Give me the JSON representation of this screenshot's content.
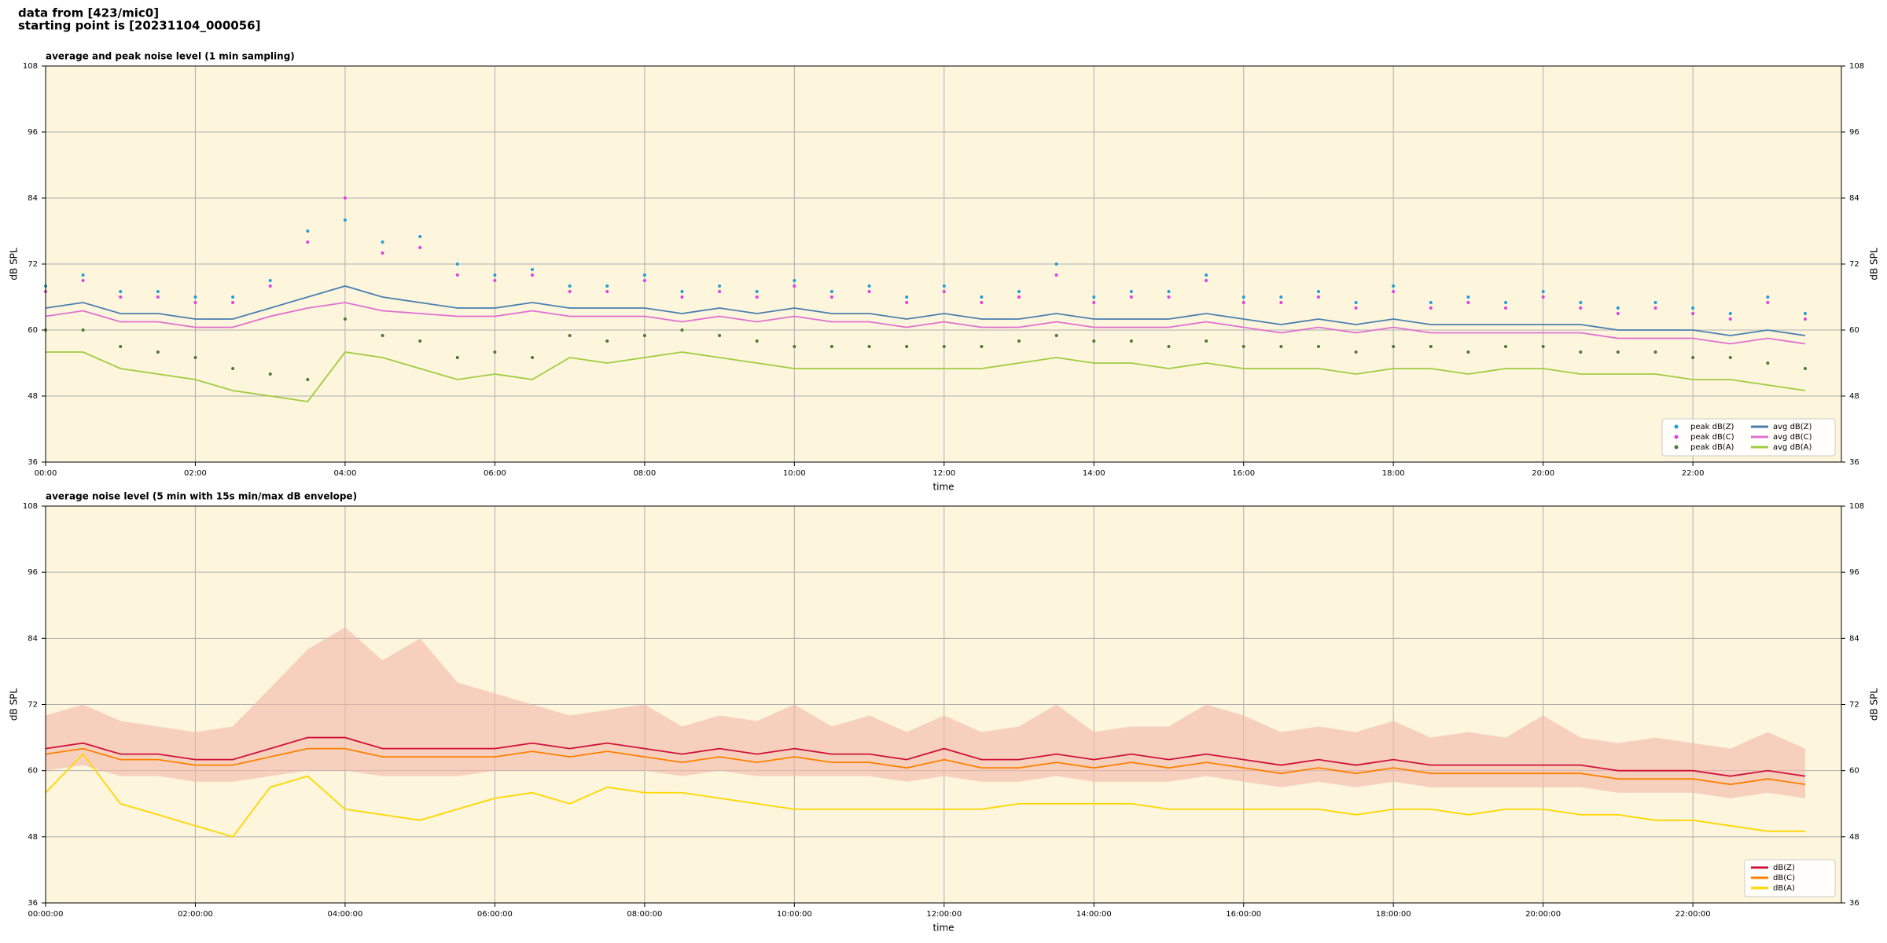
{
  "header": {
    "lines": [
      "data from [423/mic0]",
      "starting point is [20231104_000056]"
    ]
  },
  "chart_data": [
    {
      "type": "line",
      "title": "average and peak noise level (1 min sampling)",
      "xlabel": "time",
      "ylabel": "dB SPL",
      "x": [
        "00:00",
        "00:30",
        "01:00",
        "01:30",
        "02:00",
        "02:30",
        "03:00",
        "03:30",
        "04:00",
        "04:30",
        "05:00",
        "05:30",
        "06:00",
        "06:30",
        "07:00",
        "07:30",
        "08:00",
        "08:30",
        "09:00",
        "09:30",
        "10:00",
        "10:30",
        "11:00",
        "11:30",
        "12:00",
        "12:30",
        "13:00",
        "13:30",
        "14:00",
        "14:30",
        "15:00",
        "15:30",
        "16:00",
        "16:30",
        "17:00",
        "17:30",
        "18:00",
        "18:30",
        "19:00",
        "19:30",
        "20:00",
        "20:30",
        "21:00",
        "21:30",
        "22:00",
        "22:30",
        "23:00",
        "23:30"
      ],
      "xlim": [
        "00:00",
        "23:59"
      ],
      "xticks": [
        "00:00",
        "02:00",
        "04:00",
        "06:00",
        "08:00",
        "10:00",
        "12:00",
        "14:00",
        "16:00",
        "18:00",
        "20:00",
        "22:00"
      ],
      "ylim": [
        36,
        108
      ],
      "yticks": [
        36,
        48,
        60,
        72,
        84,
        96,
        108
      ],
      "grid": true,
      "legend": "lower right",
      "legend_columns": 2,
      "series": [
        {
          "name": "peak dB(Z)",
          "mode": "markers",
          "color": "#1f9fd8",
          "values": [
            68,
            70,
            67,
            67,
            66,
            66,
            69,
            78,
            80,
            76,
            77,
            72,
            70,
            71,
            68,
            68,
            70,
            67,
            68,
            67,
            69,
            67,
            68,
            66,
            68,
            66,
            67,
            72,
            66,
            67,
            67,
            70,
            66,
            66,
            67,
            65,
            68,
            65,
            66,
            65,
            67,
            65,
            64,
            65,
            64,
            63,
            66,
            63
          ]
        },
        {
          "name": "peak dB(C)",
          "mode": "markers",
          "color": "#e040e0",
          "values": [
            67,
            69,
            66,
            66,
            65,
            65,
            68,
            76,
            84,
            74,
            75,
            70,
            69,
            70,
            67,
            67,
            69,
            66,
            67,
            66,
            68,
            66,
            67,
            65,
            67,
            65,
            66,
            70,
            65,
            66,
            66,
            69,
            65,
            65,
            66,
            64,
            67,
            64,
            65,
            64,
            66,
            64,
            63,
            64,
            63,
            62,
            65,
            62
          ]
        },
        {
          "name": "peak dB(A)",
          "mode": "markers",
          "color": "#4a7a30",
          "values": [
            60,
            60,
            57,
            56,
            55,
            53,
            52,
            51,
            62,
            59,
            58,
            55,
            56,
            55,
            59,
            58,
            59,
            60,
            59,
            58,
            57,
            57,
            57,
            57,
            57,
            57,
            58,
            59,
            58,
            58,
            57,
            58,
            57,
            57,
            57,
            56,
            57,
            57,
            56,
            57,
            57,
            56,
            56,
            56,
            55,
            55,
            54,
            53
          ]
        },
        {
          "name": "avg dB(Z)",
          "mode": "lines",
          "color": "#4a7fb0",
          "values": [
            64,
            65,
            63,
            63,
            62,
            62,
            64,
            66,
            68,
            66,
            65,
            64,
            64,
            65,
            64,
            64,
            64,
            63,
            64,
            63,
            64,
            63,
            63,
            62,
            63,
            62,
            62,
            63,
            62,
            62,
            62,
            63,
            62,
            61,
            62,
            61,
            62,
            61,
            61,
            61,
            61,
            61,
            60,
            60,
            60,
            59,
            60,
            59
          ]
        },
        {
          "name": "avg dB(C)",
          "mode": "lines",
          "color": "#e070d0",
          "values": [
            62.5,
            63.5,
            61.5,
            61.5,
            60.5,
            60.5,
            62.5,
            64,
            65,
            63.5,
            63,
            62.5,
            62.5,
            63.5,
            62.5,
            62.5,
            62.5,
            61.5,
            62.5,
            61.5,
            62.5,
            61.5,
            61.5,
            60.5,
            61.5,
            60.5,
            60.5,
            61.5,
            60.5,
            60.5,
            60.5,
            61.5,
            60.5,
            59.5,
            60.5,
            59.5,
            60.5,
            59.5,
            59.5,
            59.5,
            59.5,
            59.5,
            58.5,
            58.5,
            58.5,
            57.5,
            58.5,
            57.5
          ]
        },
        {
          "name": "avg dB(A)",
          "mode": "lines",
          "color": "#a0cc40",
          "values": [
            56,
            56,
            53,
            52,
            51,
            49,
            48,
            47,
            56,
            55,
            53,
            51,
            52,
            51,
            55,
            54,
            55,
            56,
            55,
            54,
            53,
            53,
            53,
            53,
            53,
            53,
            54,
            55,
            54,
            54,
            53,
            54,
            53,
            53,
            53,
            52,
            53,
            53,
            52,
            53,
            53,
            52,
            52,
            52,
            51,
            51,
            50,
            49
          ]
        }
      ]
    },
    {
      "type": "line",
      "title": "average noise level (5 min with 15s min/max dB envelope)",
      "xlabel": "time",
      "ylabel": "dB SPL",
      "x": [
        "00:00:00",
        "00:30:00",
        "01:00:00",
        "01:30:00",
        "02:00:00",
        "02:30:00",
        "03:00:00",
        "03:30:00",
        "04:00:00",
        "04:30:00",
        "05:00:00",
        "05:30:00",
        "06:00:00",
        "06:30:00",
        "07:00:00",
        "07:30:00",
        "08:00:00",
        "08:30:00",
        "09:00:00",
        "09:30:00",
        "10:00:00",
        "10:30:00",
        "11:00:00",
        "11:30:00",
        "12:00:00",
        "12:30:00",
        "13:00:00",
        "13:30:00",
        "14:00:00",
        "14:30:00",
        "15:00:00",
        "15:30:00",
        "16:00:00",
        "16:30:00",
        "17:00:00",
        "17:30:00",
        "18:00:00",
        "18:30:00",
        "19:00:00",
        "19:30:00",
        "20:00:00",
        "20:30:00",
        "21:00:00",
        "21:30:00",
        "22:00:00",
        "22:30:00",
        "23:00:00",
        "23:30:00"
      ],
      "xlim": [
        "00:00:00",
        "23:59:00"
      ],
      "xticks": [
        "00:00:00",
        "02:00:00",
        "04:00:00",
        "06:00:00",
        "08:00:00",
        "10:00:00",
        "12:00:00",
        "14:00:00",
        "16:00:00",
        "18:00:00",
        "20:00:00",
        "22:00:00"
      ],
      "ylim": [
        36,
        108
      ],
      "yticks": [
        36,
        48,
        60,
        72,
        84,
        96,
        108
      ],
      "grid": true,
      "legend": "lower right",
      "legend_columns": 1,
      "envelope": {
        "color": "#f4b8a8",
        "lower": [
          60,
          61,
          59,
          59,
          58,
          58,
          59,
          60,
          60,
          59,
          59,
          59,
          60,
          60,
          60,
          60,
          60,
          59,
          60,
          59,
          59,
          59,
          59,
          58,
          59,
          58,
          58,
          59,
          58,
          58,
          58,
          59,
          58,
          57,
          58,
          57,
          58,
          57,
          57,
          57,
          57,
          57,
          56,
          56,
          56,
          55,
          56,
          55
        ],
        "upper": [
          70,
          72,
          69,
          68,
          67,
          68,
          75,
          82,
          86,
          80,
          84,
          76,
          74,
          72,
          70,
          71,
          72,
          68,
          70,
          69,
          72,
          68,
          70,
          67,
          70,
          67,
          68,
          72,
          67,
          68,
          68,
          72,
          70,
          67,
          68,
          67,
          69,
          66,
          67,
          66,
          70,
          66,
          65,
          66,
          65,
          64,
          67,
          64
        ]
      },
      "series": [
        {
          "name": "dB(Z)",
          "mode": "lines",
          "color": "#d0103a",
          "values": [
            64,
            65,
            63,
            63,
            62,
            62,
            64,
            66,
            66,
            64,
            64,
            64,
            64,
            65,
            64,
            65,
            64,
            63,
            64,
            63,
            64,
            63,
            63,
            62,
            64,
            62,
            62,
            63,
            62,
            63,
            62,
            63,
            62,
            61,
            62,
            61,
            62,
            61,
            61,
            61,
            61,
            61,
            60,
            60,
            60,
            59,
            60,
            59
          ]
        },
        {
          "name": "dB(C)",
          "mode": "lines",
          "color": "#ff8000",
          "values": [
            63,
            64,
            62,
            62,
            61,
            61,
            62.5,
            64,
            64,
            62.5,
            62.5,
            62.5,
            62.5,
            63.5,
            62.5,
            63.5,
            62.5,
            61.5,
            62.5,
            61.5,
            62.5,
            61.5,
            61.5,
            60.5,
            62,
            60.5,
            60.5,
            61.5,
            60.5,
            61.5,
            60.5,
            61.5,
            60.5,
            59.5,
            60.5,
            59.5,
            60.5,
            59.5,
            59.5,
            59.5,
            59.5,
            59.5,
            58.5,
            58.5,
            58.5,
            57.5,
            58.5,
            57.5
          ]
        },
        {
          "name": "dB(A)",
          "mode": "lines",
          "color": "#ffd700",
          "values": [
            56,
            63,
            54,
            52,
            50,
            48,
            57,
            59,
            53,
            52,
            51,
            53,
            55,
            56,
            54,
            57,
            56,
            56,
            55,
            54,
            53,
            53,
            53,
            53,
            53,
            53,
            54,
            54,
            54,
            54,
            53,
            53,
            53,
            53,
            53,
            52,
            53,
            53,
            52,
            53,
            53,
            52,
            52,
            51,
            51,
            50,
            49,
            49
          ]
        }
      ]
    }
  ]
}
